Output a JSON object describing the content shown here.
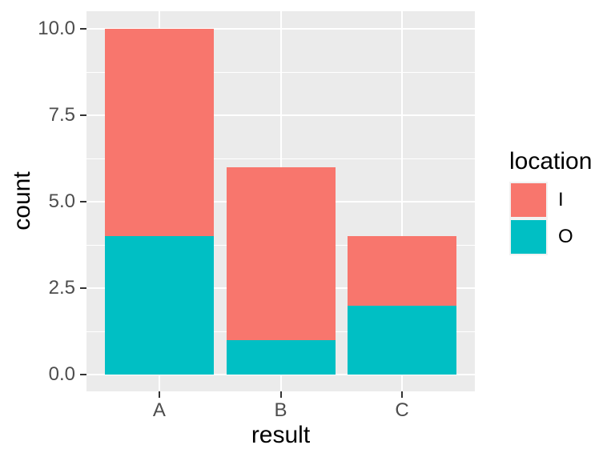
{
  "chart_data": {
    "type": "bar",
    "stacked": true,
    "title": "",
    "xlabel": "result",
    "ylabel": "count",
    "categories": [
      "A",
      "B",
      "C"
    ],
    "series": [
      {
        "name": "I",
        "color": "#F8766D",
        "values": [
          6,
          5,
          2
        ]
      },
      {
        "name": "O",
        "color": "#00BFC4",
        "values": [
          4,
          1,
          2
        ]
      }
    ],
    "stack_totals": [
      10,
      6,
      4
    ],
    "ylim": [
      0,
      10
    ],
    "yticks": [
      0,
      2.5,
      5,
      7.5,
      10
    ],
    "ytick_labels": [
      "0.0",
      "2.5",
      "5.0",
      "7.5",
      "10.0"
    ],
    "yminor_ticks": [
      1.25,
      3.75,
      6.25,
      8.75
    ],
    "grid": true,
    "legend": {
      "title": "location",
      "position": "right",
      "entries": [
        "I",
        "O"
      ]
    },
    "style": {
      "figure_background": "#FFFFFF",
      "panel_background": "#EBEBEB",
      "grid_color": "#FFFFFF",
      "tick_color": "#333333",
      "tick_label_color": "#4D4D4D",
      "axis_title_color": "#000000",
      "legend_key_background": "#F2F2F2"
    }
  }
}
